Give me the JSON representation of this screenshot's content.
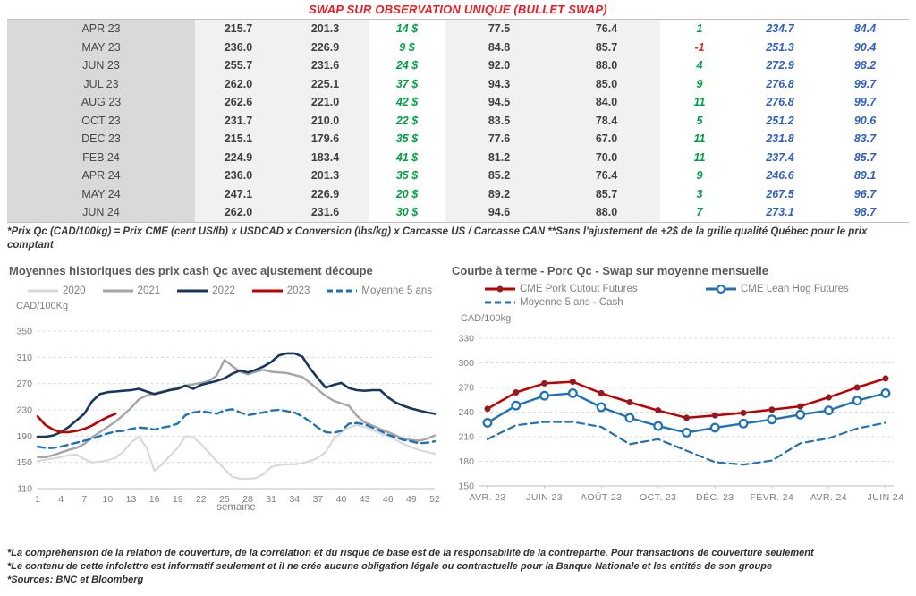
{
  "title": "SWAP SUR OBSERVATION UNIQUE (BULLET SWAP)",
  "table": {
    "rows": [
      [
        "APR 23",
        "215.7",
        "201.3",
        "14 $",
        "77.5",
        "76.4",
        "1",
        "234.7",
        "84.4"
      ],
      [
        "MAY 23",
        "236.0",
        "226.9",
        "9 $",
        "84.8",
        "85.7",
        "-1",
        "251.3",
        "90.4"
      ],
      [
        "JUN 23",
        "255.7",
        "231.6",
        "24 $",
        "92.0",
        "88.0",
        "4",
        "272.9",
        "98.2"
      ],
      [
        "JUL 23",
        "262.0",
        "225.1",
        "37 $",
        "94.3",
        "85.0",
        "9",
        "276.8",
        "99.7"
      ],
      [
        "AUG 23",
        "262.6",
        "221.0",
        "42 $",
        "94.5",
        "84.0",
        "11",
        "276.8",
        "99.7"
      ],
      [
        "OCT 23",
        "231.7",
        "210.0",
        "22 $",
        "83.5",
        "78.4",
        "5",
        "251.2",
        "90.6"
      ],
      [
        "DEC 23",
        "215.1",
        "179.6",
        "35 $",
        "77.6",
        "67.0",
        "11",
        "231.8",
        "83.7"
      ],
      [
        "FEB 24",
        "224.9",
        "183.4",
        "41 $",
        "81.2",
        "70.0",
        "11",
        "237.4",
        "85.7"
      ],
      [
        "APR 24",
        "236.0",
        "201.3",
        "35 $",
        "85.2",
        "76.4",
        "9",
        "246.6",
        "89.1"
      ],
      [
        "MAY 24",
        "247.1",
        "226.9",
        "20 $",
        "89.2",
        "85.7",
        "3",
        "267.5",
        "96.7"
      ],
      [
        "JUN 24",
        "262.0",
        "231.6",
        "30 $",
        "94.6",
        "88.0",
        "7",
        "273.1",
        "98.7"
      ]
    ]
  },
  "table_footnote": "*Prix Qc (CAD/100kg) = Prix CME (cent US/lb) x USDCAD x Conversion (lbs/kg) x Carcasse US / Carcasse CAN **Sans l'ajustement de +2$ de la grille qualité Québec pour le prix comptant",
  "colors": {
    "title_red": "#ec1c24",
    "gain_green": "#00a142",
    "delta_red": "#d02e2e",
    "futures_blue": "#2e5fc4",
    "month_band": "#d9d9d9",
    "light_band": "#f1f1f1"
  },
  "chart_data": [
    {
      "type": "line",
      "title": "Moyennes historiques des prix cash Qc avec ajustement découpe",
      "ylabel": "CAD/100Kg",
      "xlabel": "semaine",
      "x_type": "linear",
      "xlim": [
        1,
        52
      ],
      "x_ticks": [
        1,
        4,
        7,
        10,
        13,
        16,
        19,
        22,
        25,
        28,
        31,
        34,
        37,
        40,
        43,
        46,
        49,
        52
      ],
      "ylim": [
        110,
        350
      ],
      "yticks": [
        110,
        150,
        190,
        230,
        270,
        310,
        350
      ],
      "grid": "dashed-horizontal",
      "legend_position": "top",
      "series": [
        {
          "name": "2020",
          "color": "#d9d9d9",
          "width": 2.2,
          "values": [
            152,
            154,
            156,
            158,
            161,
            162,
            155,
            150,
            151,
            153,
            157,
            166,
            180,
            189,
            172,
            137,
            147,
            160,
            172,
            190,
            188,
            178,
            165,
            152,
            140,
            128,
            125,
            125,
            126,
            132,
            143,
            146,
            147,
            147,
            149,
            152,
            157,
            166,
            185,
            196,
            203,
            207,
            204,
            199,
            194,
            190,
            184,
            178,
            173,
            169,
            166,
            163
          ]
        },
        {
          "name": "2021",
          "color": "#a5a5a5",
          "width": 2.4,
          "values": [
            158,
            158,
            161,
            165,
            169,
            172,
            178,
            188,
            196,
            204,
            212,
            222,
            233,
            246,
            252,
            255,
            258,
            261,
            264,
            267,
            269,
            271,
            274,
            282,
            306,
            297,
            288,
            284,
            288,
            291,
            288,
            287,
            286,
            283,
            280,
            271,
            261,
            251,
            244,
            240,
            236,
            221,
            211,
            206,
            201,
            196,
            191,
            186,
            184,
            183,
            186,
            191
          ]
        },
        {
          "name": "2022",
          "color": "#17375e",
          "width": 2.6,
          "values": [
            189,
            189,
            191,
            196,
            204,
            214,
            224,
            243,
            254,
            257,
            258,
            259,
            260,
            262,
            258,
            254,
            257,
            260,
            262,
            267,
            262,
            268,
            271,
            274,
            278,
            285,
            290,
            287,
            291,
            296,
            303,
            313,
            316,
            316,
            311,
            293,
            278,
            264,
            268,
            271,
            263,
            260,
            259,
            260,
            260,
            249,
            241,
            236,
            232,
            229,
            226,
            224
          ]
        },
        {
          "name": "2023",
          "color": "#c00000",
          "width": 2.6,
          "values": [
            220,
            207,
            200,
            196,
            196,
            198,
            201,
            206,
            213,
            219,
            224
          ]
        },
        {
          "name": "Moyenne 5 ans",
          "color": "#2171b5",
          "width": 2.4,
          "dash": true,
          "values": [
            174,
            172,
            172,
            174,
            177,
            180,
            183,
            186,
            190,
            194,
            197,
            198,
            201,
            203,
            202,
            200,
            203,
            205,
            209,
            222,
            226,
            228,
            226,
            224,
            229,
            231,
            226,
            222,
            224,
            226,
            229,
            230,
            228,
            226,
            220,
            212,
            203,
            196,
            195,
            198,
            209,
            210,
            208,
            203,
            198,
            192,
            188,
            184,
            182,
            179,
            180,
            182
          ]
        }
      ]
    },
    {
      "type": "line",
      "title": "Courbe à terme - Porc Qc - Swap sur moyenne mensuelle",
      "ylabel": "CAD/100kg",
      "x_type": "category",
      "x_labels": [
        "AVR. 23",
        "",
        "JUIN 23",
        "",
        "AOÛT 23",
        "",
        "OCT. 23",
        "",
        "DÉC. 23",
        "",
        "FÉVR. 24",
        "",
        "AVR. 24",
        "",
        "JUIN 24"
      ],
      "ylim": [
        150,
        330
      ],
      "yticks": [
        150,
        180,
        210,
        240,
        270,
        300,
        330
      ],
      "grid": "dashed-horizontal",
      "legend_position": "top",
      "series": [
        {
          "name": "CME Pork Cutout Futures",
          "color": "#c00000",
          "width": 2.5,
          "marker": "filled",
          "marker_color": "#941a20",
          "values": [
            244,
            264,
            275,
            277,
            263,
            252,
            242,
            233,
            236,
            239,
            243,
            247,
            258,
            270,
            281
          ]
        },
        {
          "name": "CME Lean Hog Futures",
          "color": "#2171b5",
          "width": 2.4,
          "marker": "open",
          "values": [
            227,
            248,
            260,
            263,
            246,
            233,
            223,
            215,
            221,
            226,
            231,
            237,
            242,
            254,
            263
          ]
        },
        {
          "name": "Moyenne 5 ans - Cash",
          "color": "#2171b5",
          "width": 2.2,
          "dash": true,
          "values": [
            207,
            224,
            228,
            228,
            222,
            201,
            207,
            193,
            179,
            176,
            181,
            202,
            208,
            220,
            227
          ]
        }
      ]
    }
  ],
  "footer": {
    "lines": [
      "*La compréhension de la relation de couverture, de la corrélation et du risque de base est de la responsabilité de la contrepartie. Pour transactions de couverture seulement",
      "*Le contenu de cette infolettre est informatif seulement et il ne crée aucune obligation légale ou contractuelle pour la Banque Nationale et les entités de son groupe",
      "*Sources: BNC et Bloomberg"
    ]
  }
}
